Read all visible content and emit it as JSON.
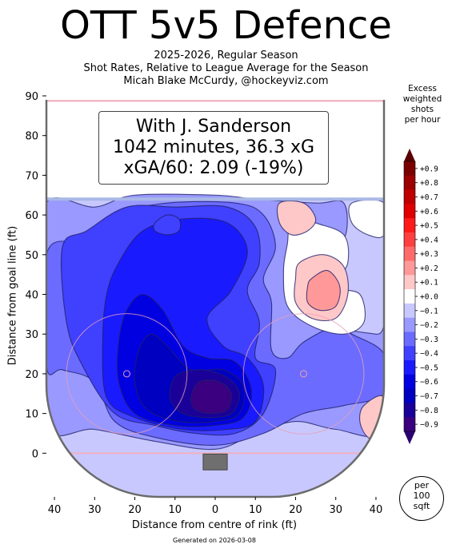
{
  "title": "OTT 5v5 Defence",
  "subtitle_lines": [
    "2025-2026, Regular Season",
    "Shot Rates, Relative to League Average for the Season",
    "Micah Blake McCurdy, @hockeyviz.com"
  ],
  "box_lines": [
    "With J. Sanderson",
    "1042 minutes, 36.3 xG",
    "xGA/60: 2.09 (-19%)"
  ],
  "colorbar": {
    "title_lines": [
      "Excess",
      "weighted",
      "shots",
      "per hour"
    ],
    "labels": [
      "+0.9",
      "+0.8",
      "+0.7",
      "+0.6",
      "+0.5",
      "+0.4",
      "+0.3",
      "+0.2",
      "+0.1",
      "+0.0",
      "−0.1",
      "−0.2",
      "−0.3",
      "−0.4",
      "−0.5",
      "−0.6",
      "−0.7",
      "−0.8",
      "−0.9"
    ],
    "colors": [
      "#7a0000",
      "#9c0000",
      "#c00000",
      "#e00000",
      "#ff1a1a",
      "#ff4040",
      "#ff6b6b",
      "#ff9999",
      "#ffc8c8",
      "#ffffff",
      "#c8c8ff",
      "#9999ff",
      "#6b6bff",
      "#4040ff",
      "#1a1aff",
      "#0000e0",
      "#0000c0",
      "#1a0098",
      "#3a0080"
    ]
  },
  "per_unit_lines": [
    "per",
    "100",
    "sqft"
  ],
  "generated": "Generated on 2026-03-08",
  "chart_data": {
    "type": "heatmap",
    "xlabel": "Distance from centre of rink (ft)",
    "ylabel": "Distance from goal line (ft)",
    "xlim": [
      -42,
      42
    ],
    "ylim": [
      -11,
      90
    ],
    "x_ticks": [
      -40,
      -30,
      -20,
      -10,
      0,
      10,
      20,
      30,
      40
    ],
    "x_tick_labels": [
      "40",
      "30",
      "20",
      "10",
      "0",
      "10",
      "20",
      "30",
      "40"
    ],
    "y_ticks": [
      0,
      10,
      20,
      30,
      40,
      50,
      60,
      70,
      80,
      90
    ],
    "y_tick_labels": [
      "0",
      "10",
      "20",
      "30",
      "40",
      "50",
      "60",
      "70",
      "80",
      "90"
    ],
    "regions": [
      {
        "level": -0.2,
        "points": [
          [
            -42,
            63
          ],
          [
            -30,
            62
          ],
          [
            -20,
            65
          ],
          [
            0,
            65
          ],
          [
            10,
            64
          ],
          [
            25,
            63
          ],
          [
            32,
            63
          ],
          [
            32,
            54
          ],
          [
            25,
            52
          ],
          [
            18,
            45
          ],
          [
            20,
            36
          ],
          [
            28,
            32
          ],
          [
            40,
            30
          ],
          [
            42,
            30
          ],
          [
            42,
            6
          ],
          [
            30,
            6
          ],
          [
            20,
            8
          ],
          [
            10,
            5
          ],
          [
            0,
            1
          ],
          [
            -15,
            3
          ],
          [
            -30,
            6
          ],
          [
            -42,
            7
          ],
          [
            -42,
            40
          ]
        ]
      },
      {
        "level": -0.3,
        "points": [
          [
            -42,
            50
          ],
          [
            -34,
            54
          ],
          [
            -25,
            60
          ],
          [
            -12,
            63
          ],
          [
            5,
            63
          ],
          [
            12,
            60
          ],
          [
            15,
            52
          ],
          [
            12,
            44
          ],
          [
            14,
            38
          ],
          [
            14,
            26
          ],
          [
            18,
            24
          ],
          [
            22,
            28
          ],
          [
            30,
            32
          ],
          [
            34,
            30
          ],
          [
            42,
            25
          ],
          [
            42,
            15
          ],
          [
            32,
            12
          ],
          [
            22,
            10
          ],
          [
            12,
            5
          ],
          [
            0,
            2
          ],
          [
            -15,
            4
          ],
          [
            -25,
            8
          ],
          [
            -30,
            18
          ],
          [
            -38,
            21
          ],
          [
            -42,
            22
          ]
        ]
      },
      {
        "level": -0.4,
        "points": [
          [
            -38,
            52
          ],
          [
            -32,
            56
          ],
          [
            -22,
            62
          ],
          [
            -10,
            62
          ],
          [
            3,
            62
          ],
          [
            10,
            57
          ],
          [
            11,
            48
          ],
          [
            8,
            41
          ],
          [
            11,
            33
          ],
          [
            10,
            24
          ],
          [
            15,
            21
          ],
          [
            12,
            10
          ],
          [
            5,
            5
          ],
          [
            -5,
            5
          ],
          [
            -15,
            7
          ],
          [
            -25,
            10
          ],
          [
            -33,
            22
          ],
          [
            -37,
            33
          ]
        ]
      },
      {
        "level": -0.5,
        "points": [
          [
            -24,
            48
          ],
          [
            -18,
            56
          ],
          [
            -8,
            59
          ],
          [
            3,
            58
          ],
          [
            8,
            51
          ],
          [
            4,
            41
          ],
          [
            -2,
            34
          ],
          [
            2,
            27
          ],
          [
            8,
            24
          ],
          [
            12,
            17
          ],
          [
            10,
            8
          ],
          [
            3,
            6
          ],
          [
            -8,
            6
          ],
          [
            -20,
            9
          ],
          [
            -27,
            14
          ],
          [
            -28,
            28
          ],
          [
            -27,
            40
          ]
        ]
      },
      {
        "level": -0.6,
        "points": [
          [
            -22,
            36
          ],
          [
            -18,
            40
          ],
          [
            -13,
            36
          ],
          [
            -8,
            27
          ],
          [
            -2,
            24
          ],
          [
            5,
            23
          ],
          [
            9,
            16
          ],
          [
            7,
            9
          ],
          [
            0,
            7
          ],
          [
            -10,
            7
          ],
          [
            -20,
            10
          ],
          [
            -24,
            18
          ],
          [
            -24,
            28
          ]
        ]
      },
      {
        "level": -0.7,
        "points": [
          [
            -16,
            30
          ],
          [
            -12,
            27
          ],
          [
            -6,
            21
          ],
          [
            2,
            21
          ],
          [
            7,
            17
          ],
          [
            6,
            10
          ],
          [
            0,
            8
          ],
          [
            -9,
            8
          ],
          [
            -17,
            11
          ],
          [
            -20,
            18
          ],
          [
            -19,
            26
          ]
        ]
      },
      {
        "level": -0.8,
        "points": [
          [
            -9,
            20
          ],
          [
            -3,
            21
          ],
          [
            3,
            19
          ],
          [
            6,
            15
          ],
          [
            4,
            10
          ],
          [
            -2,
            9
          ],
          [
            -8,
            10
          ],
          [
            -11,
            13
          ],
          [
            -11,
            17
          ]
        ]
      },
      {
        "level": -0.9,
        "points": [
          [
            -4,
            18
          ],
          [
            1,
            18
          ],
          [
            4,
            15
          ],
          [
            3,
            11
          ],
          [
            -1,
            10
          ],
          [
            -5,
            11
          ],
          [
            -6,
            14
          ]
        ]
      },
      {
        "level": -0.4,
        "points": [
          [
            -15,
            58
          ],
          [
            -12,
            60
          ],
          [
            -9,
            59
          ],
          [
            -9,
            56
          ],
          [
            -12,
            55
          ],
          [
            -15,
            56
          ]
        ]
      },
      {
        "level": 0.0,
        "points": [
          [
            19,
            60
          ],
          [
            25,
            58
          ],
          [
            32,
            55
          ],
          [
            33,
            48
          ],
          [
            30,
            42
          ],
          [
            36,
            40
          ],
          [
            37,
            33
          ],
          [
            32,
            30
          ],
          [
            24,
            32
          ],
          [
            18,
            37
          ],
          [
            17,
            46
          ],
          [
            18,
            53
          ]
        ]
      },
      {
        "level": 0.1,
        "points": [
          [
            21,
            48
          ],
          [
            27,
            50
          ],
          [
            32,
            47
          ],
          [
            33,
            40
          ],
          [
            30,
            34
          ],
          [
            24,
            34
          ],
          [
            20,
            38
          ],
          [
            20,
            44
          ]
        ]
      },
      {
        "level": 0.2,
        "points": [
          [
            24,
            44
          ],
          [
            28,
            46
          ],
          [
            31,
            42
          ],
          [
            30,
            37
          ],
          [
            26,
            36
          ],
          [
            23,
            38
          ],
          [
            23,
            42
          ]
        ]
      },
      {
        "level": 0.1,
        "points": [
          [
            16,
            63
          ],
          [
            22,
            63
          ],
          [
            25,
            59
          ],
          [
            23,
            56
          ],
          [
            19,
            55
          ],
          [
            16,
            58
          ]
        ]
      },
      {
        "level": 0.1,
        "points": [
          [
            37,
            12
          ],
          [
            42,
            14
          ],
          [
            42,
            3
          ],
          [
            38,
            4
          ],
          [
            36,
            8
          ]
        ]
      },
      {
        "level": 0.0,
        "points": [
          [
            34,
            63
          ],
          [
            42,
            63
          ],
          [
            42,
            55
          ],
          [
            38,
            55
          ],
          [
            34,
            58
          ]
        ]
      }
    ]
  }
}
